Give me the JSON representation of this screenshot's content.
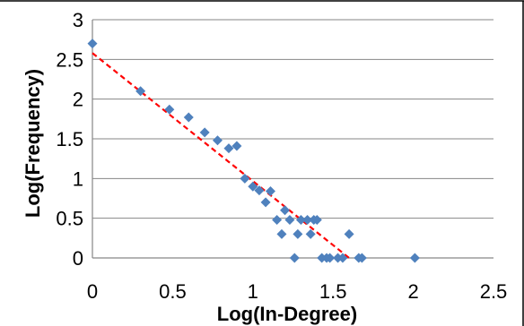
{
  "chart_data": {
    "type": "scatter",
    "xlabel": "Log(In-Degree)",
    "ylabel": "Log(Frequency)",
    "xlim": [
      0,
      2.5
    ],
    "ylim": [
      0,
      3
    ],
    "xticks": [
      "0",
      "0.5",
      "1",
      "1.5",
      "2",
      "2.5"
    ],
    "yticks": [
      "0",
      "0.5",
      "1",
      "1.5",
      "2",
      "2.5",
      "3"
    ],
    "grid": "horizontal",
    "series": [
      {
        "marker": "diamond",
        "color": "#4F81BD",
        "points": [
          [
            0.0,
            2.7
          ],
          [
            0.3,
            2.1
          ],
          [
            0.48,
            1.87
          ],
          [
            0.6,
            1.77
          ],
          [
            0.7,
            1.58
          ],
          [
            0.78,
            1.48
          ],
          [
            0.85,
            1.38
          ],
          [
            0.9,
            1.41
          ],
          [
            0.95,
            1.0
          ],
          [
            1.0,
            0.9
          ],
          [
            1.04,
            0.85
          ],
          [
            1.08,
            0.7
          ],
          [
            1.11,
            0.84
          ],
          [
            1.15,
            0.48
          ],
          [
            1.18,
            0.3
          ],
          [
            1.2,
            0.6
          ],
          [
            1.23,
            0.48
          ],
          [
            1.26,
            0.0
          ],
          [
            1.28,
            0.3
          ],
          [
            1.3,
            0.48
          ],
          [
            1.34,
            0.48
          ],
          [
            1.36,
            0.3
          ],
          [
            1.38,
            0.48
          ],
          [
            1.4,
            0.48
          ],
          [
            1.43,
            0.0
          ],
          [
            1.46,
            0.0
          ],
          [
            1.48,
            0.0
          ],
          [
            1.53,
            0.0
          ],
          [
            1.56,
            0.0
          ],
          [
            1.6,
            0.3
          ],
          [
            1.66,
            0.0
          ],
          [
            1.68,
            0.0
          ],
          [
            2.01,
            0.0
          ]
        ]
      }
    ],
    "trendline": {
      "style": "dashed",
      "color": "#FF0000",
      "x": [
        0,
        1.6
      ],
      "y": [
        2.58,
        0.0
      ]
    }
  }
}
